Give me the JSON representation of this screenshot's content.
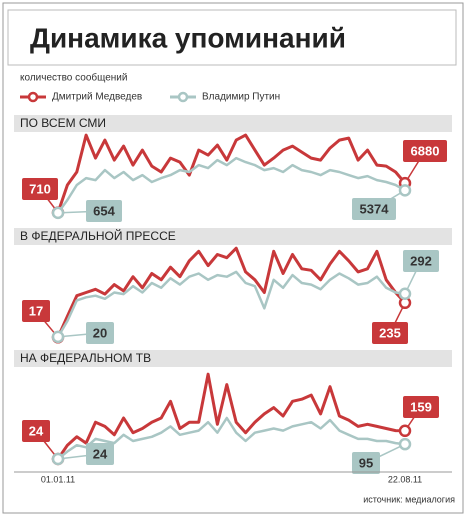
{
  "title": "Динамика упоминаний",
  "subtitle": "количество сообщений",
  "source": "источник: медиалогия",
  "chart_data": [
    {
      "type": "line",
      "title": "ПО ВСЕМ СМИ",
      "ylim": [
        0,
        18000
      ],
      "series": [
        {
          "name": "Дмитрий Медведев",
          "color": "#c8383a",
          "values": [
            710,
            6480,
            9200,
            16930,
            12120,
            15880,
            11700,
            14630,
            10660,
            13790,
            10450,
            9200,
            12120,
            11290,
            8570,
            13790,
            12750,
            14840,
            11700,
            15880,
            16930,
            13790,
            10660,
            12120,
            13790,
            14630,
            13380,
            12120,
            11700,
            14210,
            15880,
            16300,
            11700,
            13790,
            10660,
            10450,
            9200,
            6880
          ]
        },
        {
          "name": "Владимир Путин",
          "color": "#a9c6c4",
          "values": [
            654,
            3340,
            6480,
            7940,
            7520,
            9610,
            7940,
            9200,
            7520,
            8570,
            7110,
            7940,
            8570,
            9610,
            9200,
            10660,
            10030,
            11700,
            10660,
            12120,
            11290,
            10660,
            9610,
            10030,
            9200,
            10660,
            9610,
            9200,
            8570,
            9610,
            9200,
            8570,
            7940,
            8360,
            7520,
            7110,
            6480,
            5374
          ]
        }
      ]
    },
    {
      "type": "line",
      "title": "В ФЕДЕРАЛЬНОЙ ПРЕССЕ",
      "ylim": [
        0,
        600
      ],
      "series": [
        {
          "color": "#c8383a",
          "values": [
            17,
            150,
            280,
            300,
            320,
            290,
            350,
            310,
            400,
            330,
            420,
            380,
            460,
            400,
            500,
            560,
            470,
            540,
            520,
            580,
            430,
            380,
            300,
            560,
            420,
            540,
            450,
            440,
            380,
            480,
            560,
            500,
            430,
            450,
            560,
            380,
            300,
            235
          ]
        },
        {
          "color": "#a9c6c4",
          "values": [
            20,
            120,
            250,
            270,
            280,
            260,
            300,
            290,
            340,
            300,
            360,
            330,
            390,
            350,
            400,
            420,
            380,
            410,
            400,
            430,
            360,
            340,
            200,
            380,
            330,
            410,
            360,
            350,
            320,
            380,
            420,
            390,
            350,
            360,
            400,
            330,
            300,
            292
          ]
        }
      ]
    },
    {
      "type": "line",
      "title": "НА ФЕДЕРАЛЬНОМ ТВ",
      "ylim": [
        0,
        450
      ],
      "categories": [
        "01.01.11",
        null,
        null,
        null,
        null,
        null,
        null,
        null,
        null,
        null,
        null,
        null,
        null,
        null,
        null,
        null,
        null,
        null,
        null,
        null,
        null,
        null,
        null,
        null,
        null,
        null,
        null,
        null,
        null,
        null,
        null,
        null,
        null,
        null,
        null,
        null,
        null,
        "22.08.11"
      ],
      "series": [
        {
          "color": "#c8383a",
          "values": [
            24,
            90,
            130,
            100,
            200,
            180,
            140,
            220,
            150,
            170,
            200,
            220,
            300,
            170,
            200,
            200,
            430,
            190,
            380,
            200,
            150,
            200,
            240,
            270,
            230,
            300,
            310,
            330,
            240,
            370,
            230,
            210,
            180,
            190,
            180,
            170,
            160,
            159
          ]
        },
        {
          "color": "#a9c6c4",
          "values": [
            24,
            60,
            90,
            80,
            120,
            110,
            100,
            140,
            110,
            120,
            130,
            150,
            180,
            140,
            150,
            160,
            200,
            150,
            220,
            150,
            110,
            150,
            160,
            170,
            160,
            180,
            190,
            200,
            170,
            210,
            160,
            140,
            120,
            120,
            110,
            110,
            100,
            95
          ]
        }
      ]
    }
  ]
}
